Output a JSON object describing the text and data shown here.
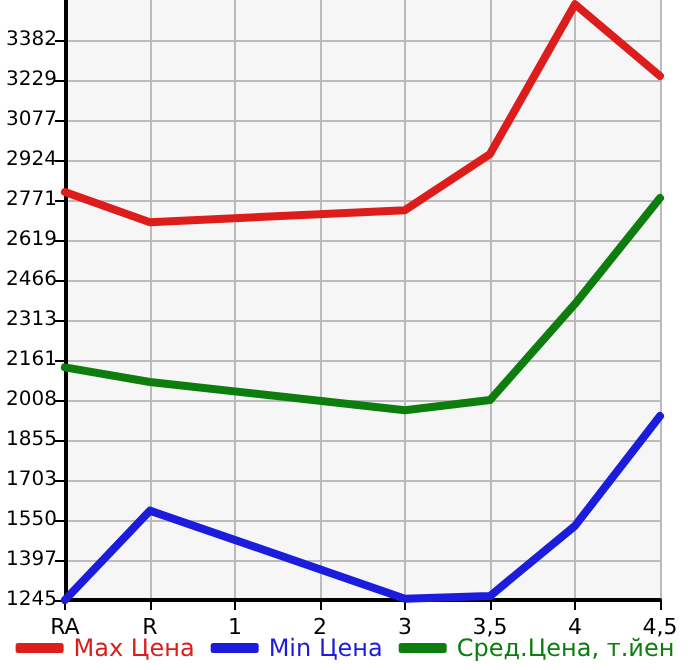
{
  "chart_data": {
    "type": "line",
    "categories": [
      "RA",
      "R",
      "1",
      "2",
      "3",
      "3,5",
      "4",
      "4,5"
    ],
    "series": [
      {
        "name": "Max Цена",
        "color": "#dd1c1c",
        "values": [
          2802,
          2687,
          null,
          null,
          2733,
          2947,
          3519,
          3245
        ]
      },
      {
        "name": "Min Цена",
        "color": "#1c1cdd",
        "values": [
          1245,
          1586,
          null,
          null,
          1250,
          1260,
          1528,
          1947
        ]
      },
      {
        "name": "Сред.Цена, т.йен",
        "color": "#0d7d0d",
        "values": [
          2133,
          2077,
          null,
          null,
          1969,
          2008,
          2375,
          2779
        ]
      }
    ],
    "ylim": [
      1245,
      3535
    ],
    "yticks": [
      1245,
      1397,
      1550,
      1703,
      1855,
      2008,
      2161,
      2313,
      2466,
      2619,
      2771,
      2924,
      3077,
      3229,
      3382
    ],
    "grid": true,
    "legend": "bottom",
    "marker": "none",
    "line_style": "solid"
  }
}
